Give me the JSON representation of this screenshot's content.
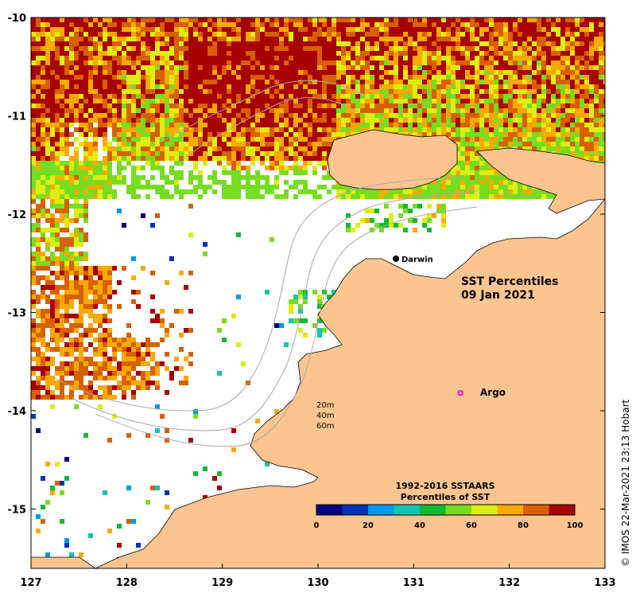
{
  "map": {
    "title_line1": "SST Percentiles",
    "title_line2": "09 Jan 2021",
    "longitude_labels": [
      "127",
      "128",
      "129",
      "130",
      "131",
      "132",
      "133"
    ],
    "latitude_labels": [
      "-10",
      "-11",
      "-12",
      "-13",
      "-14",
      "-15"
    ],
    "place_name": "Darwin",
    "argo_label": "Argo",
    "argo_marker_glyph": "o",
    "contour_labels": [
      "20m",
      "40m",
      "60m"
    ],
    "colorbar_title_line1": "1992-2016 SSTAARS",
    "colorbar_title_line2": "Percentiles of SST",
    "colorbar_ticks": [
      "0",
      "20",
      "40",
      "60",
      "80",
      "100"
    ],
    "credit": "© IMOS 22-Mar-2021 23:13 Hobart",
    "colors": {
      "land": "#fcc590",
      "ocean_nodata": "#ffffff",
      "contour": "#a8a8a8",
      "argo_marker": "#ff00ff",
      "colorbar_bins": [
        "#00007f",
        "#0033b3",
        "#0099ee",
        "#11c5b0",
        "#11bb33",
        "#77dd22",
        "#ddee11",
        "#f8aa00",
        "#d86000",
        "#a80000"
      ]
    }
  }
}
